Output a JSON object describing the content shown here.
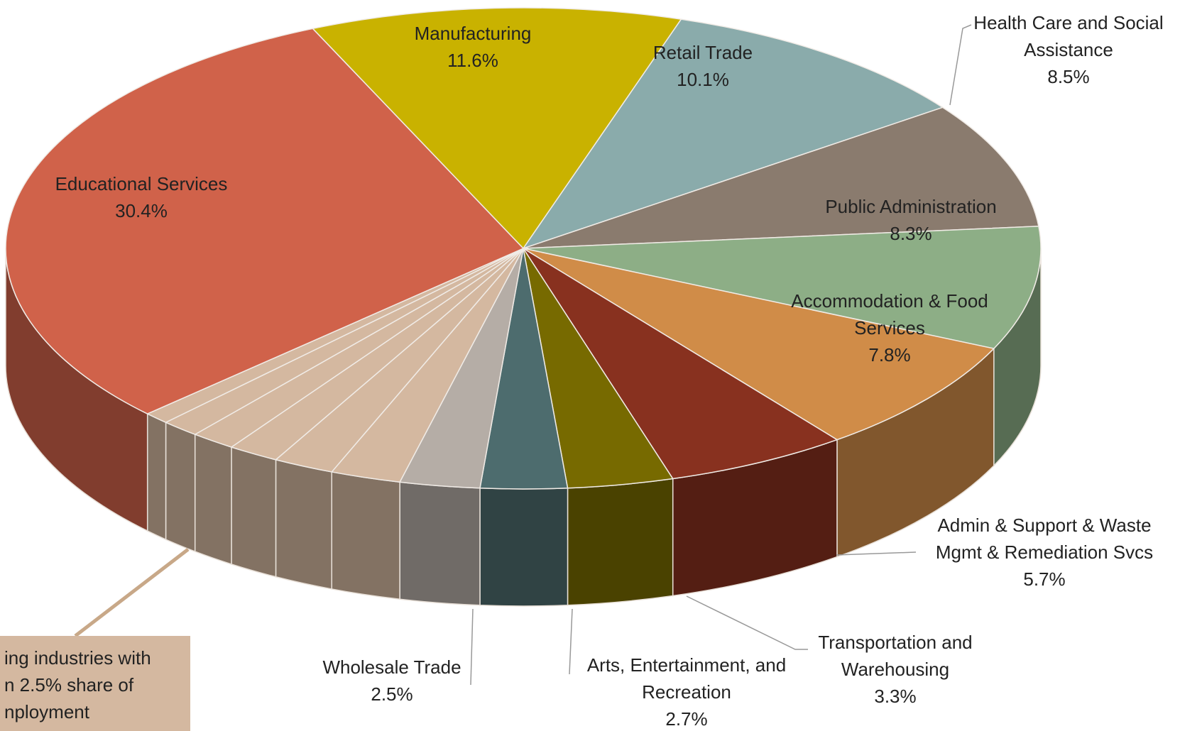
{
  "chart_data": {
    "type": "pie3d",
    "categories": [
      "Manufacturing",
      "Retail Trade",
      "Health Care and Social Assistance",
      "Public Administration",
      "Accommodation & Food Services",
      "Admin & Support & Waste Mgmt & Remediation Svcs",
      "Transportation and Warehousing",
      "Arts, Entertainment, and Recreation",
      "Wholesale Trade",
      null,
      null,
      null,
      null,
      null,
      null,
      "Educational Services"
    ],
    "values": [
      11.6,
      10.1,
      8.5,
      8.3,
      7.8,
      5.7,
      3.3,
      2.7,
      2.5,
      2.2,
      1.9,
      1.6,
      1.4,
      1.2,
      0.8,
      30.4
    ],
    "value_labels": [
      "11.6%",
      "10.1%",
      "8.5%",
      "8.3%",
      "7.8%",
      "5.7%",
      "3.3%",
      "2.7%",
      "2.5%",
      null,
      null,
      null,
      null,
      null,
      null,
      "30.4%"
    ],
    "colors": [
      "#c9b200",
      "#8aabab",
      "#8a7b6e",
      "#8dae86",
      "#d08c48",
      "#88311f",
      "#776a00",
      "#4d6c6e",
      "#b5ada6",
      "#d4b8a0",
      "#d4b8a0",
      "#d4b8a0",
      "#d4b8a0",
      "#d4b8a0",
      "#d4b8a0",
      "#d0624a"
    ],
    "annotation": [
      "ing industries with",
      "n 2.5% share of",
      "nployment"
    ]
  }
}
